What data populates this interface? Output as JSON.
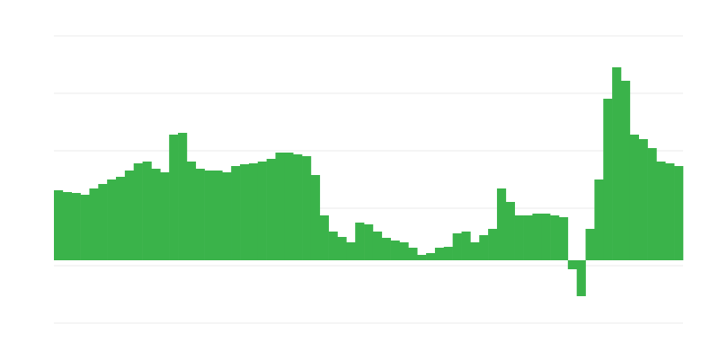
{
  "chart_data": {
    "type": "bar",
    "color": "#3ab34a",
    "grid": true,
    "ylim": [
      -110,
      290
    ],
    "yticks": [
      -70,
      -6,
      58,
      122,
      186,
      250
    ],
    "values": [
      78,
      76,
      75,
      73,
      80,
      85,
      90,
      93,
      100,
      108,
      110,
      102,
      98,
      140,
      142,
      110,
      102,
      100,
      100,
      98,
      105,
      107,
      108,
      110,
      113,
      120,
      120,
      118,
      116,
      95,
      50,
      32,
      26,
      20,
      42,
      40,
      32,
      25,
      22,
      20,
      14,
      6,
      8,
      14,
      15,
      30,
      32,
      20,
      28,
      35,
      80,
      65,
      50,
      50,
      52,
      52,
      50,
      48,
      -10,
      -40,
      35,
      90,
      180,
      215,
      200,
      140,
      135,
      125,
      110,
      108,
      105
    ]
  }
}
